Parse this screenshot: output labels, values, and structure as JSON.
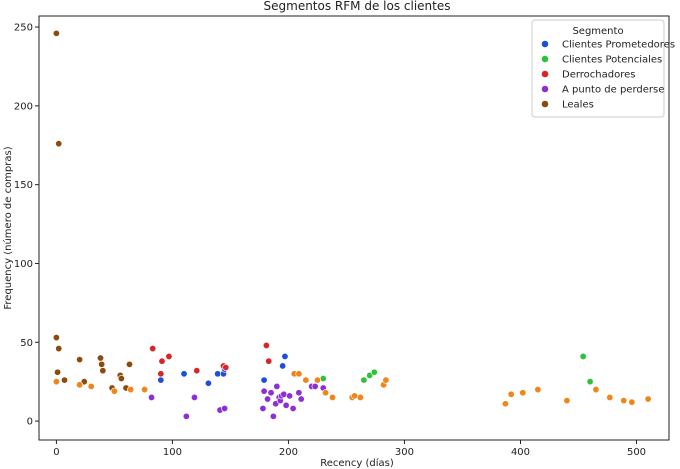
{
  "chart_data": {
    "type": "scatter",
    "title": "Segmentos RFM de los clientes",
    "xlabel": "Recency (días)",
    "ylabel": "Frequency (número de compras)",
    "xlim": [
      -15,
      528
    ],
    "ylim": [
      -12,
      257
    ],
    "xticks": [
      0,
      100,
      200,
      300,
      400,
      500
    ],
    "yticks": [
      0,
      50,
      100,
      150,
      200,
      250
    ],
    "grid": false,
    "legend": {
      "title": "Segmento",
      "placement": "top-right"
    },
    "series": [
      {
        "name": "Clientes Prometedores",
        "color": "#1f4fd8",
        "points": [
          [
            90,
            26
          ],
          [
            110,
            30
          ],
          [
            131,
            24
          ],
          [
            139,
            30
          ],
          [
            144,
            30
          ],
          [
            145,
            33
          ],
          [
            179,
            26
          ],
          [
            197,
            41
          ],
          [
            195,
            35
          ]
        ]
      },
      {
        "name": "Clientes Potenciales",
        "color": "#2ec23b",
        "points": [
          [
            230,
            27
          ],
          [
            265,
            26
          ],
          [
            270,
            29
          ],
          [
            274,
            31
          ],
          [
            454,
            41
          ],
          [
            460,
            25
          ]
        ]
      },
      {
        "name": "Derrochadores",
        "color": "#d62728",
        "points": [
          [
            83,
            46
          ],
          [
            90,
            30
          ],
          [
            91,
            38
          ],
          [
            97,
            41
          ],
          [
            121,
            32
          ],
          [
            144,
            35
          ],
          [
            146,
            34
          ],
          [
            181,
            48
          ],
          [
            183,
            38
          ]
        ]
      },
      {
        "name": "A punto de perderse",
        "color": "#8c2fd6",
        "points": [
          [
            82,
            15
          ],
          [
            112,
            3
          ],
          [
            119,
            15
          ],
          [
            141,
            7
          ],
          [
            145,
            8
          ],
          [
            179,
            19
          ],
          [
            178,
            8
          ],
          [
            182,
            14
          ],
          [
            185,
            18
          ],
          [
            187,
            3
          ],
          [
            189,
            11
          ],
          [
            190,
            22
          ],
          [
            192,
            15
          ],
          [
            193,
            13
          ],
          [
            194,
            16
          ],
          [
            196,
            17
          ],
          [
            198,
            10
          ],
          [
            201,
            16
          ],
          [
            204,
            8
          ],
          [
            209,
            18
          ],
          [
            211,
            14
          ],
          [
            220,
            22
          ],
          [
            223,
            22
          ],
          [
            230,
            21
          ]
        ]
      },
      {
        "name": "Leales",
        "color": "#8c4a0c",
        "points": [
          [
            0,
            246
          ],
          [
            2,
            176
          ],
          [
            0,
            53
          ],
          [
            2,
            46
          ],
          [
            1,
            31
          ],
          [
            7,
            26
          ],
          [
            20,
            39
          ],
          [
            24,
            25
          ],
          [
            38,
            40
          ],
          [
            39,
            36
          ],
          [
            40,
            32
          ],
          [
            48,
            21
          ],
          [
            55,
            29
          ],
          [
            56,
            27
          ],
          [
            60,
            21
          ],
          [
            63,
            36
          ]
        ]
      },
      {
        "color": "#f08519",
        "points": [
          [
            0,
            25
          ],
          [
            20,
            23
          ],
          [
            30,
            22
          ],
          [
            50,
            19
          ],
          [
            64,
            20
          ],
          [
            76,
            20
          ],
          [
            205,
            30
          ],
          [
            209,
            30
          ],
          [
            215,
            26
          ],
          [
            225,
            26
          ],
          [
            232,
            18
          ],
          [
            238,
            15
          ],
          [
            255,
            15
          ],
          [
            257,
            16
          ],
          [
            262,
            15
          ],
          [
            282,
            23
          ],
          [
            284,
            26
          ],
          [
            387,
            11
          ],
          [
            392,
            17
          ],
          [
            402,
            18
          ],
          [
            415,
            20
          ],
          [
            440,
            13
          ],
          [
            465,
            20
          ],
          [
            477,
            15
          ],
          [
            489,
            13
          ],
          [
            496,
            12
          ],
          [
            510,
            14
          ]
        ]
      }
    ]
  }
}
